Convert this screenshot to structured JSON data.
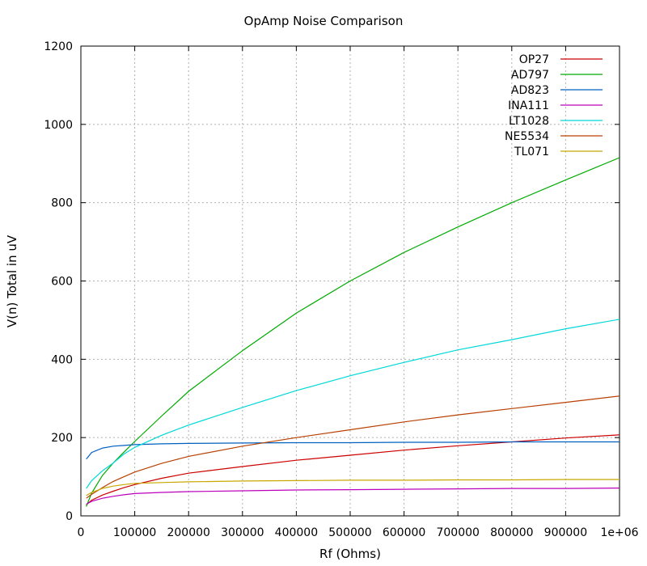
{
  "chart_data": {
    "type": "line",
    "title": "OpAmp Noise Comparison",
    "xlabel": "Rf (Ohms)",
    "ylabel": "V(n) Total in uV",
    "xlim": [
      0,
      1000000
    ],
    "ylim": [
      0,
      1200
    ],
    "x_ticks": [
      0,
      100000,
      200000,
      300000,
      400000,
      500000,
      600000,
      700000,
      800000,
      900000,
      1000000
    ],
    "x_tick_labels": [
      "0",
      "100000",
      "200000",
      "300000",
      "400000",
      "500000",
      "600000",
      "700000",
      "800000",
      "900000",
      "1e+06"
    ],
    "y_ticks": [
      0,
      200,
      400,
      600,
      800,
      1000,
      1200
    ],
    "y_tick_labels": [
      "0",
      "200",
      "400",
      "600",
      "800",
      "1000",
      "1200"
    ],
    "grid": true,
    "legend_position": "top-right",
    "x": [
      10000,
      20000,
      40000,
      60000,
      80000,
      100000,
      150000,
      200000,
      300000,
      400000,
      500000,
      600000,
      700000,
      800000,
      900000,
      1000000
    ],
    "series": [
      {
        "name": "OP27",
        "color": "#cc0000",
        "values": [
          28,
          40,
          53,
          63,
          72,
          80,
          96,
          109,
          126,
          142,
          155,
          168,
          179,
          189,
          199,
          207
        ]
      },
      {
        "name": "AD797",
        "color": "#00aa00",
        "values": [
          24,
          58,
          103,
          135,
          163,
          190,
          255,
          318,
          422,
          518,
          600,
          673,
          738,
          800,
          858,
          915
        ]
      },
      {
        "name": "AD823",
        "color": "#0060c0",
        "values": [
          145,
          162,
          173,
          178,
          180,
          182,
          184,
          185,
          186,
          187,
          187,
          188,
          188,
          189,
          189,
          189
        ]
      },
      {
        "name": "INA111",
        "color": "#bb00bb",
        "values": [
          30,
          37,
          45,
          50,
          54,
          57,
          60,
          62,
          64,
          66,
          67,
          68,
          69,
          70,
          70,
          71
        ]
      },
      {
        "name": "LT1028",
        "color": "#00d8d8",
        "values": [
          70,
          90,
          115,
          135,
          158,
          175,
          206,
          232,
          277,
          320,
          358,
          392,
          424,
          450,
          478,
          502
        ]
      },
      {
        "name": "NE5534",
        "color": "#b84000",
        "values": [
          45,
          55,
          72,
          88,
          100,
          112,
          134,
          152,
          178,
          200,
          220,
          240,
          258,
          274,
          290,
          306
        ]
      },
      {
        "name": "TL071",
        "color": "#c8a800",
        "values": [
          52,
          60,
          70,
          76,
          80,
          83,
          85,
          87,
          89,
          90,
          91,
          91,
          92,
          92,
          93,
          93
        ]
      }
    ]
  }
}
